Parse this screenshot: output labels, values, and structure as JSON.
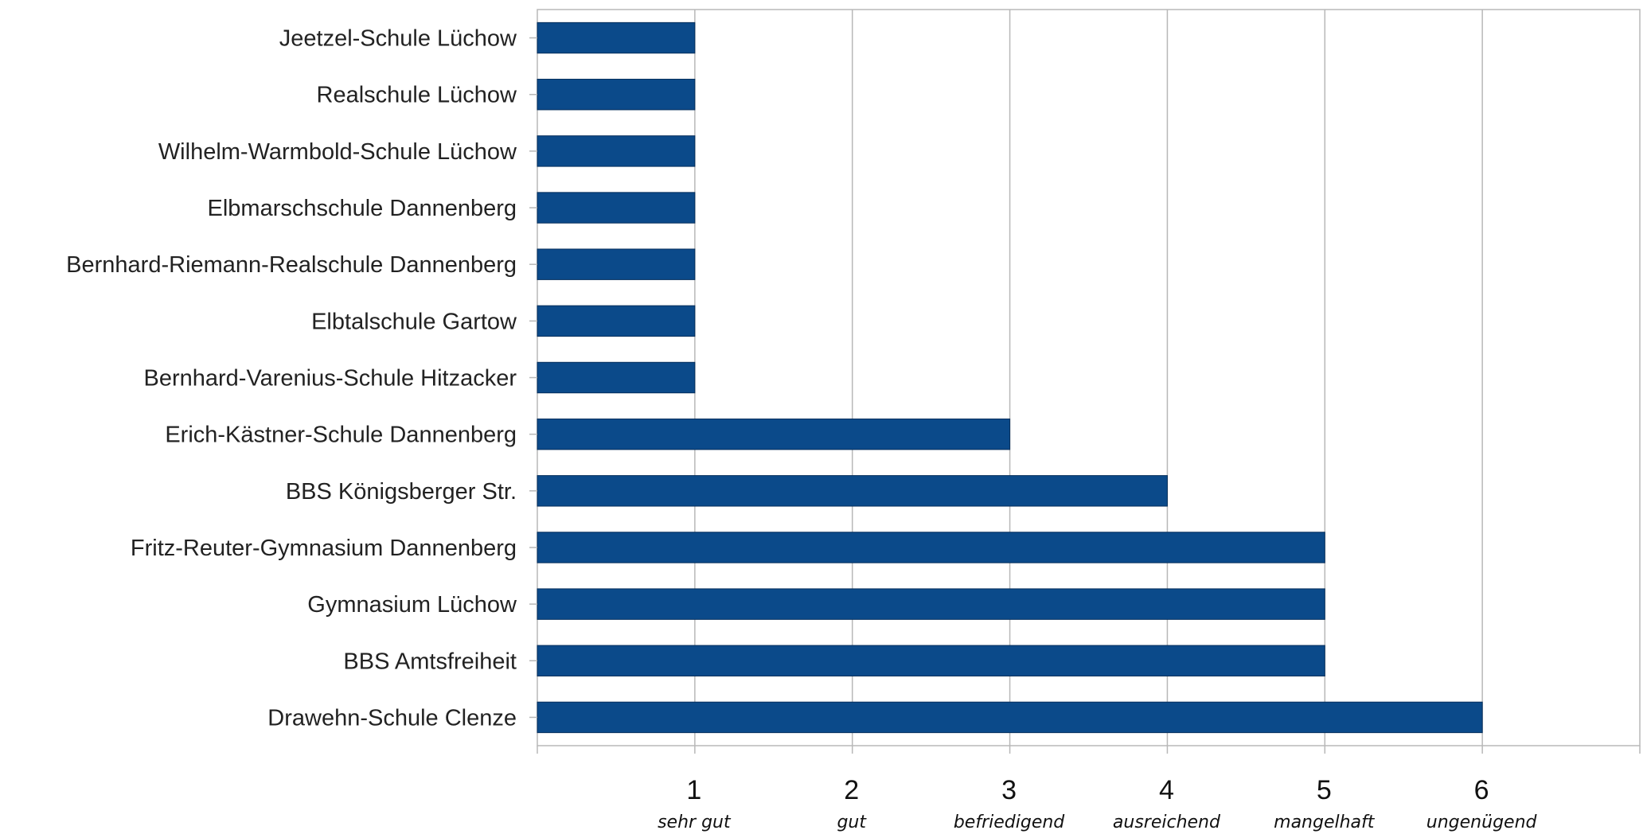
{
  "chart_data": {
    "type": "bar",
    "orientation": "horizontal",
    "categories": [
      "Jeetzel-Schule Lüchow",
      "Realschule Lüchow",
      "Wilhelm-Warmbold-Schule Lüchow",
      "Elbmarschschule Dannenberg",
      "Bernhard-Riemann-Realschule Dannenberg",
      "Elbtalschule Gartow",
      "Bernhard-Varenius-Schule Hitzacker",
      "Erich-Kästner-Schule Dannenberg",
      "BBS Königsberger Str.",
      "Fritz-Reuter-Gymnasium Dannenberg",
      "Gymnasium Lüchow",
      "BBS Amtsfreiheit",
      "Drawehn-Schule Clenze"
    ],
    "values": [
      1,
      1,
      1,
      1,
      1,
      1,
      1,
      3,
      4,
      5,
      5,
      5,
      6
    ],
    "xlim": [
      0,
      7
    ],
    "x_ticks": [
      {
        "value": 1,
        "label": "1",
        "sublabel": "sehr gut"
      },
      {
        "value": 2,
        "label": "2",
        "sublabel": "gut"
      },
      {
        "value": 3,
        "label": "3",
        "sublabel": "befriedigend"
      },
      {
        "value": 4,
        "label": "4",
        "sublabel": "ausreichend"
      },
      {
        "value": 5,
        "label": "5",
        "sublabel": "mangelhaft"
      },
      {
        "value": 6,
        "label": "6",
        "sublabel": "ungenügend"
      }
    ],
    "grid": true,
    "legend": false,
    "bar_color": "#0b4a8a",
    "grid_color": "#b8b8b8",
    "title": "",
    "xlabel": "",
    "ylabel": ""
  }
}
